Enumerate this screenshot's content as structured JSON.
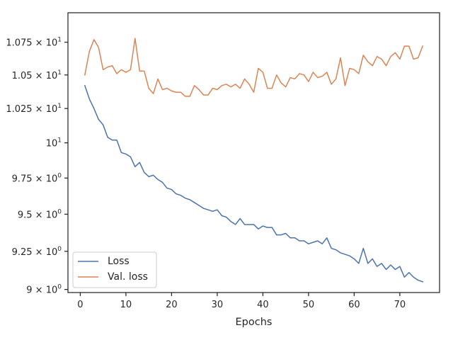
{
  "chart_data": {
    "type": "line",
    "xlabel": "Epochs",
    "ylabel": "",
    "x_scale": "linear",
    "y_scale": "log",
    "xlim": [
      -2.7,
      78.7
    ],
    "ylim": [
      8.98,
      10.98
    ],
    "grid": false,
    "legend_position": "lower-left",
    "x_ticks": [
      {
        "value": 0,
        "label": "0"
      },
      {
        "value": 10,
        "label": "10"
      },
      {
        "value": 20,
        "label": "20"
      },
      {
        "value": 30,
        "label": "30"
      },
      {
        "value": 40,
        "label": "40"
      },
      {
        "value": 50,
        "label": "50"
      },
      {
        "value": 60,
        "label": "60"
      },
      {
        "value": 70,
        "label": "70"
      }
    ],
    "y_ticks": [
      {
        "value": 9.0,
        "mantissa": "9",
        "exponent": "0"
      },
      {
        "value": 9.25,
        "mantissa": "9.25",
        "exponent": "0"
      },
      {
        "value": 9.5,
        "mantissa": "9.5",
        "exponent": "0"
      },
      {
        "value": 9.75,
        "mantissa": "9.75",
        "exponent": "0"
      },
      {
        "value": 10.0,
        "mantissa": "10",
        "exponent": "1"
      },
      {
        "value": 10.25,
        "mantissa": "1.025",
        "exponent": "1"
      },
      {
        "value": 10.5,
        "mantissa": "1.05",
        "exponent": "1"
      },
      {
        "value": 10.75,
        "mantissa": "1.075",
        "exponent": "1"
      }
    ],
    "y_tick_base": "10",
    "x": [
      1,
      2,
      3,
      4,
      5,
      6,
      7,
      8,
      9,
      10,
      11,
      12,
      13,
      14,
      15,
      16,
      17,
      18,
      19,
      20,
      21,
      22,
      23,
      24,
      25,
      26,
      27,
      28,
      29,
      30,
      31,
      32,
      33,
      34,
      35,
      36,
      37,
      38,
      39,
      40,
      41,
      42,
      43,
      44,
      45,
      46,
      47,
      48,
      49,
      50,
      51,
      52,
      53,
      54,
      55,
      56,
      57,
      58,
      59,
      60,
      61,
      62,
      63,
      64,
      65,
      66,
      67,
      68,
      69,
      70,
      71,
      72,
      73,
      74,
      75
    ],
    "series": [
      {
        "name": "Loss",
        "color": "#4c72b0",
        "values": [
          10.42,
          10.32,
          10.25,
          10.17,
          10.13,
          10.04,
          10.02,
          10.02,
          9.93,
          9.92,
          9.9,
          9.83,
          9.86,
          9.79,
          9.76,
          9.77,
          9.74,
          9.72,
          9.68,
          9.67,
          9.64,
          9.63,
          9.61,
          9.6,
          9.58,
          9.56,
          9.54,
          9.53,
          9.52,
          9.53,
          9.49,
          9.48,
          9.45,
          9.43,
          9.47,
          9.43,
          9.43,
          9.43,
          9.4,
          9.42,
          9.41,
          9.41,
          9.36,
          9.36,
          9.37,
          9.34,
          9.34,
          9.32,
          9.32,
          9.3,
          9.31,
          9.32,
          9.3,
          9.34,
          9.27,
          9.26,
          9.24,
          9.23,
          9.22,
          9.2,
          9.17,
          9.27,
          9.17,
          9.2,
          9.15,
          9.17,
          9.13,
          9.16,
          9.13,
          9.15,
          9.08,
          9.11,
          9.08,
          9.06,
          9.05
        ]
      },
      {
        "name": "Val. loss",
        "color": "#dd8452",
        "values": [
          10.5,
          10.68,
          10.77,
          10.71,
          10.54,
          10.56,
          10.57,
          10.51,
          10.54,
          10.52,
          10.54,
          10.78,
          10.53,
          10.53,
          10.4,
          10.36,
          10.47,
          10.39,
          10.4,
          10.38,
          10.37,
          10.37,
          10.34,
          10.34,
          10.42,
          10.39,
          10.35,
          10.35,
          10.4,
          10.39,
          10.42,
          10.43,
          10.41,
          10.43,
          10.4,
          10.47,
          10.43,
          10.37,
          10.55,
          10.52,
          10.4,
          10.4,
          10.5,
          10.44,
          10.41,
          10.48,
          10.47,
          10.51,
          10.5,
          10.45,
          10.52,
          10.48,
          10.49,
          10.52,
          10.43,
          10.47,
          10.63,
          10.42,
          10.55,
          10.54,
          10.51,
          10.65,
          10.6,
          10.57,
          10.64,
          10.62,
          10.57,
          10.64,
          10.67,
          10.62,
          10.72,
          10.72,
          10.62,
          10.63,
          10.72
        ]
      }
    ]
  }
}
